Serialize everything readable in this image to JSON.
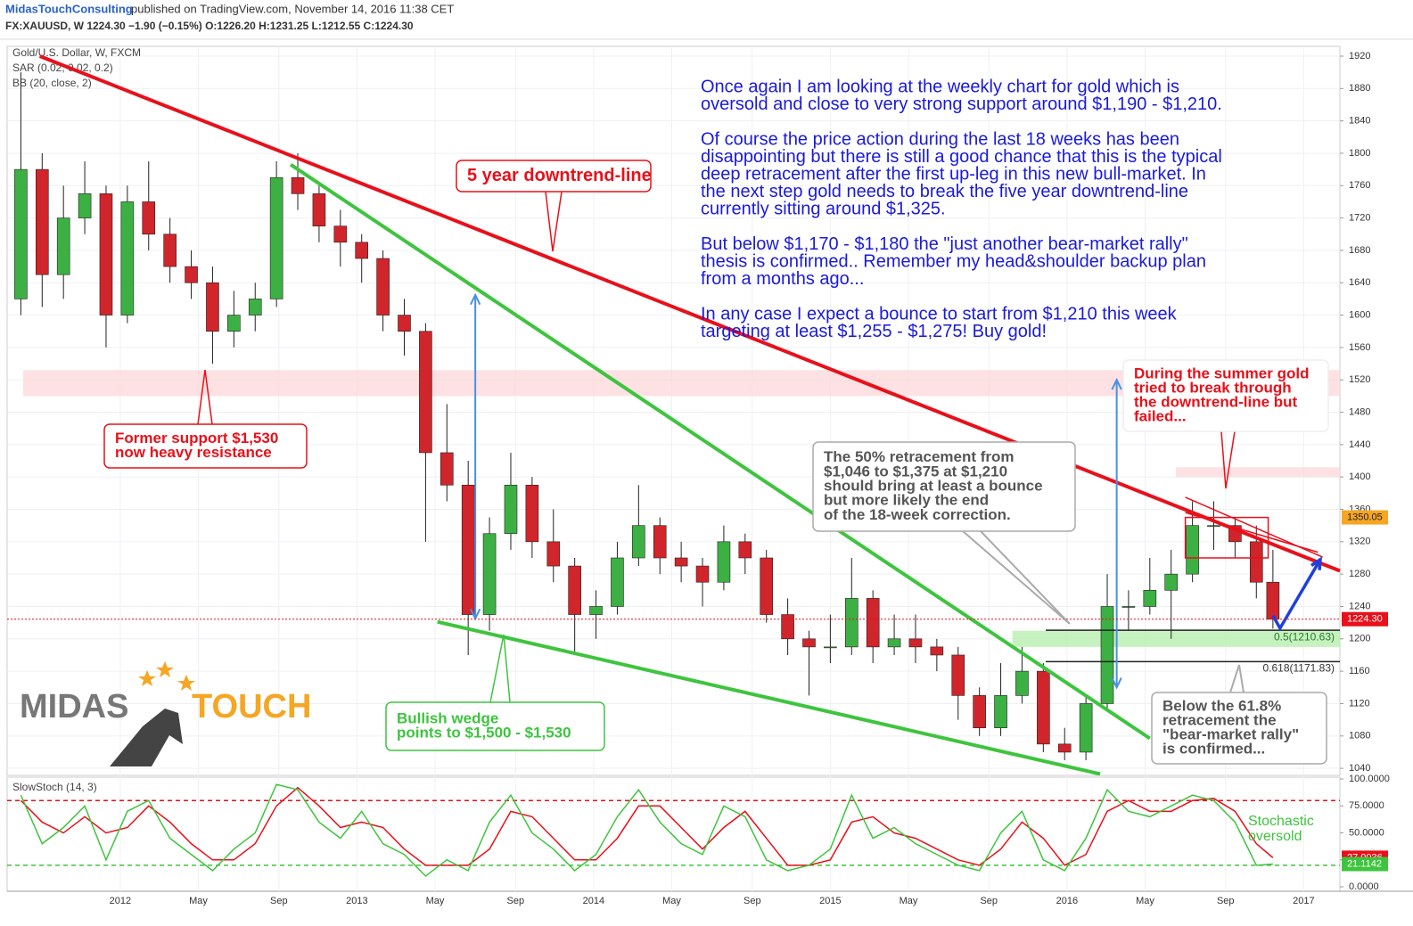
{
  "header": {
    "publisher": "MidasTouchConsulting",
    "published": "published on TradingView.com, November 14, 2016 11:38 CET",
    "symbol_line": "FX:XAUUSD, W  1224.30  −1.90 (−0.15%)  O:1226.20  H:1231.25  L:1212.55  C:1224.30"
  },
  "chart_data": [
    {
      "type": "candlestick",
      "legend": [
        "Gold/U.S. Dollar, W, FXCM",
        "SAR (0.02, 0.02, 0.2)",
        "BB (20, close, 2)"
      ],
      "up_color": "#3cb043",
      "down_color": "#d0252b",
      "x": [
        2011.58,
        2011.67,
        2011.76,
        2011.85,
        2011.94,
        2012.03,
        2012.12,
        2012.21,
        2012.3,
        2012.39,
        2012.48,
        2012.57,
        2012.66,
        2012.75,
        2012.84,
        2012.93,
        2013.02,
        2013.11,
        2013.2,
        2013.29,
        2013.38,
        2013.47,
        2013.56,
        2013.65,
        2013.74,
        2013.83,
        2013.92,
        2014.01,
        2014.1,
        2014.19,
        2014.28,
        2014.37,
        2014.46,
        2014.55,
        2014.64,
        2014.73,
        2014.82,
        2014.91,
        2015.0,
        2015.09,
        2015.18,
        2015.27,
        2015.36,
        2015.45,
        2015.54,
        2015.63,
        2015.72,
        2015.81,
        2015.9,
        2015.99,
        2016.08,
        2016.17,
        2016.26,
        2016.35,
        2016.44,
        2016.53,
        2016.62,
        2016.71,
        2016.8,
        2016.87
      ],
      "open": [
        1620,
        1780,
        1650,
        1720,
        1750,
        1600,
        1740,
        1700,
        1660,
        1640,
        1580,
        1600,
        1620,
        1770,
        1750,
        1710,
        1690,
        1670,
        1600,
        1580,
        1430,
        1390,
        1230,
        1330,
        1390,
        1320,
        1290,
        1230,
        1240,
        1300,
        1340,
        1300,
        1290,
        1270,
        1320,
        1300,
        1230,
        1200,
        1190,
        1190,
        1250,
        1190,
        1200,
        1190,
        1180,
        1130,
        1090,
        1130,
        1160,
        1070,
        1060,
        1120,
        1240,
        1240,
        1260,
        1280,
        1340,
        1340,
        1320,
        1270
      ],
      "high": [
        1900,
        1800,
        1760,
        1790,
        1760,
        1760,
        1790,
        1720,
        1680,
        1660,
        1630,
        1640,
        1790,
        1800,
        1760,
        1730,
        1700,
        1680,
        1620,
        1590,
        1490,
        1420,
        1350,
        1430,
        1400,
        1360,
        1300,
        1260,
        1320,
        1390,
        1350,
        1320,
        1300,
        1340,
        1330,
        1310,
        1250,
        1210,
        1230,
        1300,
        1260,
        1230,
        1230,
        1200,
        1190,
        1140,
        1170,
        1190,
        1170,
        1090,
        1130,
        1280,
        1260,
        1300,
        1310,
        1370,
        1370,
        1350,
        1340,
        1310
      ],
      "low": [
        1600,
        1610,
        1620,
        1700,
        1560,
        1590,
        1680,
        1640,
        1620,
        1540,
        1560,
        1580,
        1610,
        1730,
        1690,
        1660,
        1640,
        1580,
        1550,
        1320,
        1370,
        1180,
        1210,
        1310,
        1300,
        1270,
        1180,
        1200,
        1230,
        1290,
        1280,
        1270,
        1240,
        1260,
        1280,
        1220,
        1180,
        1130,
        1170,
        1180,
        1170,
        1180,
        1170,
        1160,
        1100,
        1080,
        1080,
        1120,
        1060,
        1050,
        1050,
        1110,
        1210,
        1230,
        1200,
        1270,
        1310,
        1300,
        1250,
        1212.55
      ],
      "close": [
        1780,
        1650,
        1720,
        1750,
        1600,
        1740,
        1700,
        1660,
        1640,
        1580,
        1600,
        1620,
        1770,
        1750,
        1710,
        1690,
        1670,
        1600,
        1580,
        1430,
        1390,
        1230,
        1330,
        1390,
        1320,
        1290,
        1230,
        1240,
        1300,
        1340,
        1300,
        1290,
        1270,
        1320,
        1300,
        1230,
        1200,
        1190,
        1190,
        1250,
        1190,
        1200,
        1190,
        1180,
        1130,
        1090,
        1130,
        1160,
        1070,
        1060,
        1120,
        1240,
        1240,
        1260,
        1280,
        1340,
        1340,
        1320,
        1270,
        1224.3
      ],
      "last_price": {
        "value": 1224.3,
        "label": "1224.30"
      },
      "price_tag": {
        "value": 1350.05,
        "color": "#f5a623"
      },
      "xlim": [
        2011.522,
        2017.153
      ],
      "xticks": [
        {
          "value": 2012,
          "label": "2012"
        },
        {
          "value": 2012.33,
          "label": "May"
        },
        {
          "value": 2012.67,
          "label": "Sep"
        },
        {
          "value": 2013,
          "label": "2013"
        },
        {
          "value": 2013.33,
          "label": "May"
        },
        {
          "value": 2013.67,
          "label": "Sep"
        },
        {
          "value": 2014,
          "label": "2014"
        },
        {
          "value": 2014.33,
          "label": "May"
        },
        {
          "value": 2014.67,
          "label": "Sep"
        },
        {
          "value": 2015,
          "label": "2015"
        },
        {
          "value": 2015.33,
          "label": "May"
        },
        {
          "value": 2015.67,
          "label": "Sep"
        },
        {
          "value": 2016,
          "label": "2016"
        },
        {
          "value": 2016.33,
          "label": "May"
        },
        {
          "value": 2016.67,
          "label": "Sep"
        },
        {
          "value": 2017,
          "label": "2017"
        }
      ],
      "ylim": [
        1031.3,
        1932.1
      ],
      "yticks": [
        1040,
        1080,
        1120,
        1160,
        1200,
        1240,
        1280,
        1320,
        1360,
        1400,
        1440,
        1480,
        1520,
        1560,
        1600,
        1640,
        1680,
        1720,
        1760,
        1800,
        1840,
        1880,
        1920
      ],
      "zones": [
        {
          "x": [
            2011.59,
            2017.153
          ],
          "y": [
            1500,
            1532
          ],
          "color": "#fcd9dc"
        },
        {
          "x": [
            2016.46,
            2017.153
          ],
          "y": [
            1400,
            1412
          ],
          "color": "#fcd9dc"
        },
        {
          "x": [
            2015.77,
            2017.153
          ],
          "y": [
            1190,
            1210
          ],
          "color": "#b8efb0"
        }
      ],
      "trendlines": [
        {
          "color": "#e8101a",
          "width": 4,
          "points": [
            [
              2011.66,
              1920
            ],
            [
              2017.153,
              1284
            ]
          ]
        },
        {
          "color": "#3ec43e",
          "width": 4,
          "points": [
            [
              2012.72,
              1786
            ],
            [
              2016.35,
              1077
            ]
          ]
        },
        {
          "color": "#3ec43e",
          "width": 4,
          "points": [
            [
              2013.34,
              1221
            ],
            [
              2016.14,
              1033
            ]
          ]
        },
        {
          "color": "#e8101a",
          "width": 1.5,
          "points": [
            [
              2016.5,
              1375
            ],
            [
              2017.08,
              1301
            ]
          ]
        },
        {
          "color": "#e8101a",
          "width": 1.5,
          "points": [
            [
              2016.5,
              1356
            ],
            [
              2017.06,
              1307
            ]
          ]
        }
      ],
      "boxes": [
        {
          "x": [
            2016.5,
            2016.85
          ],
          "y": [
            1300,
            1350
          ],
          "color": "#e8101a"
        }
      ],
      "fib": [
        {
          "value": 1210.63,
          "label": "0.5(1210.63)",
          "from": 2015.91
        },
        {
          "value": 1171.83,
          "label": "0.618(1171.83)",
          "from": 2015.91
        }
      ],
      "arrows": [
        {
          "color": "#4a90e2",
          "both": true,
          "points": [
            [
              2013.5,
              1225
            ],
            [
              2013.5,
              1625
            ]
          ]
        },
        {
          "color": "#4a90e2",
          "both": true,
          "points": [
            [
              2016.21,
              1140
            ],
            [
              2016.21,
              1520
            ]
          ]
        },
        {
          "color": "#1f3fe0",
          "both": false,
          "points": [
            [
              2016.87,
              1229
            ],
            [
              2016.9,
              1213
            ],
            [
              2017.07,
              1298
            ]
          ]
        }
      ],
      "annotations": [
        {
          "lines": [
            "5 year downtrend-line"
          ],
          "color": "#e8101a"
        },
        {
          "lines": [
            "Former support $1,530",
            "now heavy resistance"
          ],
          "color": "#e8101a"
        },
        {
          "lines": [
            "Bullish wedge",
            "points to $1,500 - $1,530"
          ],
          "color": "#3ec43e"
        },
        {
          "lines": [
            "The 50% retracement from",
            "$1,046 to $1,375 at $1,210",
            "should bring at least a bounce",
            "but more likely the end",
            "of the 18-week correction."
          ],
          "color": "#555555"
        },
        {
          "lines": [
            "During the summer gold",
            "tried to break through",
            "the downtrend-line but",
            "failed..."
          ],
          "color": "#e8101a"
        },
        {
          "lines": [
            "Below the 61.8%",
            "retracement the",
            "\"bear-market rally\"",
            "is confirmed..."
          ],
          "color": "#555555"
        }
      ],
      "commentary": [
        [
          "Once again I am looking at the weekly chart for gold which is",
          "oversold and close to very strong support around $1,190 - $1,210."
        ],
        [
          "Of course the price action during the last 18 weeks has been",
          "disappointing but there is still a good chance that this is the typical",
          "deep retracement after the first up-leg in this new bull-market. In",
          "the next step gold needs to break the five year downtrend-line",
          "currently sitting around $1,325."
        ],
        [
          "But below $1,170 - $1,180 the \"just another bear-market rally\"",
          "thesis is confirmed.. Remember my head&shoulder backup plan",
          "from a months ago..."
        ],
        [
          "In any case I expect a bounce to start from $1,210 this week",
          "targeting at least $1,255 - $1,275! Buy gold!"
        ]
      ],
      "logo": [
        "MIDAS",
        "TOUCH"
      ]
    },
    {
      "type": "line",
      "legend": "SlowStoch (14, 3)",
      "note": [
        "Stochastic",
        "oversold"
      ],
      "ylim": [
        -4.1,
        101.7
      ],
      "yticks": [
        {
          "value": 0,
          "label": "0.0000"
        },
        {
          "value": 25,
          "label": "25.0000"
        },
        {
          "value": 50,
          "label": "50.0000"
        },
        {
          "value": 75,
          "label": "75.0000"
        },
        {
          "value": 100,
          "label": "100.0000"
        }
      ],
      "levels": [
        {
          "value": 80,
          "color": "#e8101a"
        },
        {
          "value": 20,
          "color": "#3ec43e"
        }
      ],
      "series": [
        {
          "color": "#e8101a",
          "values": [
            80,
            60,
            50,
            65,
            50,
            55,
            75,
            60,
            40,
            25,
            25,
            40,
            75,
            92,
            75,
            55,
            60,
            55,
            35,
            20,
            20,
            20,
            35,
            70,
            65,
            45,
            25,
            25,
            45,
            75,
            75,
            55,
            35,
            55,
            70,
            45,
            20,
            20,
            25,
            60,
            65,
            50,
            45,
            35,
            25,
            20,
            35,
            60,
            45,
            20,
            30,
            70,
            80,
            70,
            70,
            80,
            82,
            70,
            40,
            27.0036
          ]
        },
        {
          "color": "#3ec43e",
          "values": [
            85,
            40,
            55,
            75,
            25,
            70,
            80,
            45,
            30,
            15,
            35,
            50,
            95,
            90,
            60,
            45,
            70,
            40,
            30,
            10,
            25,
            15,
            60,
            85,
            50,
            35,
            15,
            30,
            65,
            90,
            60,
            40,
            30,
            75,
            65,
            25,
            15,
            20,
            35,
            85,
            45,
            55,
            40,
            30,
            20,
            15,
            50,
            70,
            25,
            15,
            45,
            90,
            70,
            65,
            75,
            85,
            80,
            60,
            20,
            21.1142
          ]
        }
      ]
    }
  ]
}
